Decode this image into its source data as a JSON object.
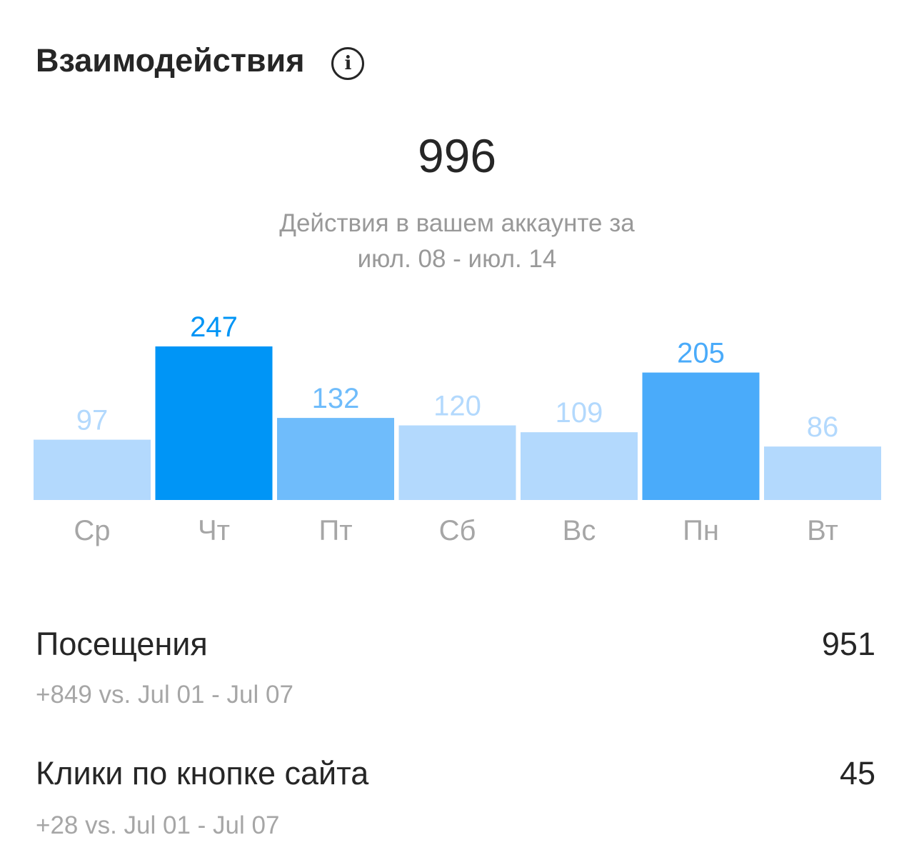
{
  "header": {
    "title": "Взаимодействия",
    "info_icon": "info-icon"
  },
  "summary": {
    "total": "996",
    "subtitle_line1": "Действия в вашем аккаунте за",
    "subtitle_line2": "июл. 08 - июл. 14"
  },
  "chart_data": {
    "type": "bar",
    "categories": [
      "Ср",
      "Чт",
      "Пт",
      "Сб",
      "Вс",
      "Пн",
      "Вт"
    ],
    "values": [
      97,
      247,
      132,
      120,
      109,
      205,
      86
    ],
    "bar_colors": [
      "#b3d9fd",
      "#0095f6",
      "#6fbcfb",
      "#b3d9fd",
      "#b3d9fd",
      "#4aabfa",
      "#b3d9fd"
    ],
    "label_colors": [
      "#b3d9fd",
      "#0095f6",
      "#6fbcfb",
      "#b3d9fd",
      "#b3d9fd",
      "#4aabfa",
      "#b3d9fd"
    ],
    "ylim": [
      0,
      247
    ]
  },
  "metrics": [
    {
      "label": "Посещения",
      "value": "951",
      "compare": "+849 vs. Jul 01 - Jul 07"
    },
    {
      "label": "Клики по кнопке сайта",
      "value": "45",
      "compare": "+28 vs. Jul 01 - Jul 07"
    }
  ]
}
